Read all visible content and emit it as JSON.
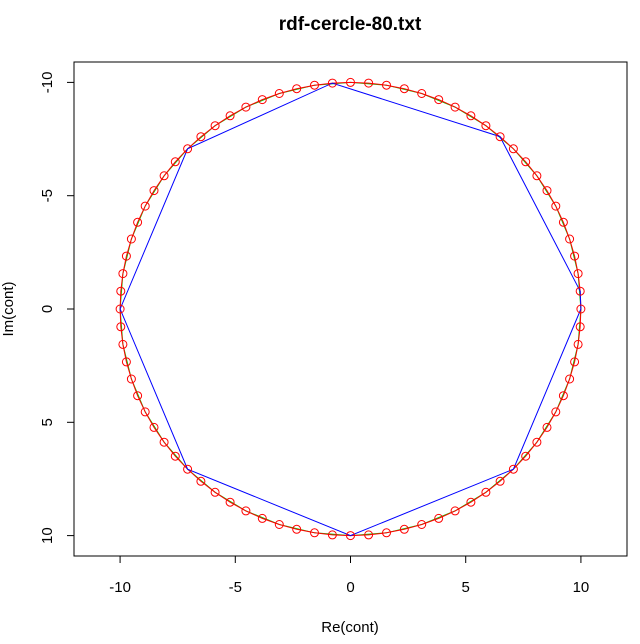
{
  "chart_data": {
    "type": "scatter",
    "title": "rdf-cercle-80.txt",
    "xlabel": "Re(cont)",
    "ylabel": "Im(cont)",
    "xlim": [
      -12,
      12
    ],
    "ylim": [
      -10.9,
      10.9
    ],
    "y_axis_reversed": true,
    "x_ticks": [
      "-10",
      "-5",
      "0",
      "5",
      "10"
    ],
    "y_ticks": [
      "-10",
      "-5",
      "0",
      "5",
      "10"
    ],
    "grid": false,
    "legend": "none",
    "circle_radius": 10,
    "point_count": 80,
    "series": [
      {
        "kind": "points-and-line",
        "color": "#ff0000",
        "description_values": "80 equally spaced points on circle of radius 10"
      },
      {
        "kind": "line",
        "color": "#00cc00",
        "description_values": "40-point polygon on the circle"
      },
      {
        "kind": "line",
        "color": "#0000ff",
        "points": [
          [
            10,
            0
          ],
          [
            7.07,
            7.07
          ],
          [
            0,
            10
          ],
          [
            -7.07,
            7.07
          ],
          [
            -10,
            0
          ],
          [
            -7.07,
            -7.07
          ],
          [
            -0.785,
            -9.969
          ],
          [
            6.49,
            -7.61
          ],
          [
            9.969,
            -0.785
          ],
          [
            10,
            0
          ]
        ]
      }
    ]
  }
}
